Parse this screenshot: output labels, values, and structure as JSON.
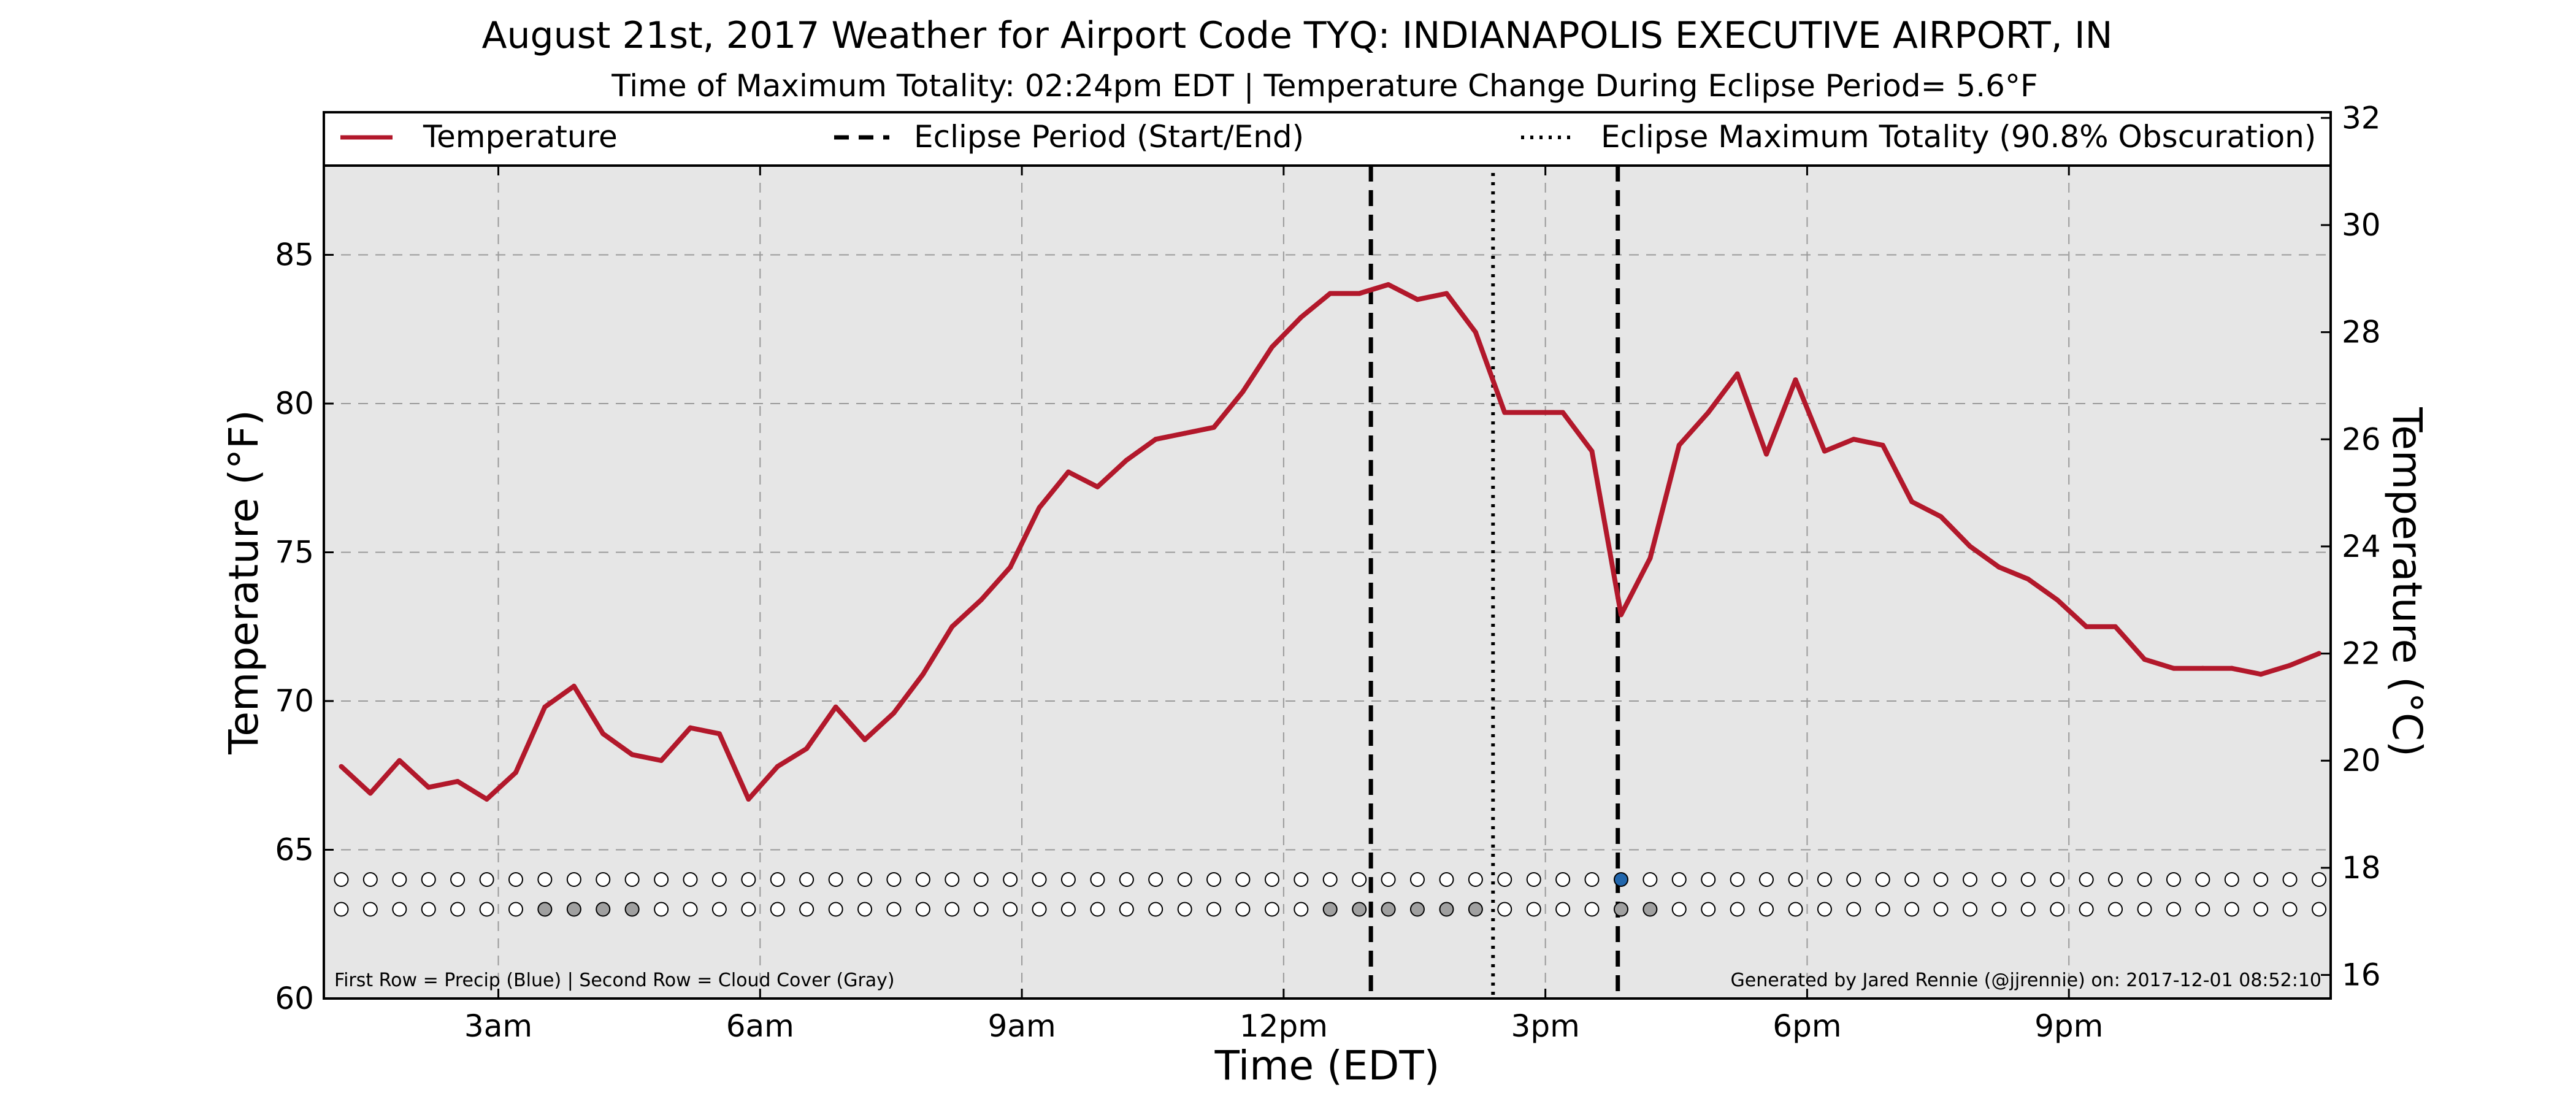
{
  "chart_data": {
    "type": "line",
    "title": "August 21st, 2017 Weather for Airport Code TYQ: INDIANAPOLIS EXECUTIVE AIRPORT, IN",
    "subtitle": "Time of Maximum Totality: 02:24pm EDT | Temperature Change During Eclipse Period= 5.6°F",
    "xlabel": "Time (EDT)",
    "ylabel": "Temperature (°F)",
    "ylabel_right": "Temperature (°C)",
    "xlim": [
      1.0,
      24.0
    ],
    "ylim": [
      60,
      88
    ],
    "ylim_right": [
      15.56,
      31.11
    ],
    "xticks": [
      {
        "x": 3,
        "label": "3am"
      },
      {
        "x": 6,
        "label": "6am"
      },
      {
        "x": 9,
        "label": "9am"
      },
      {
        "x": 12,
        "label": "12pm"
      },
      {
        "x": 15,
        "label": "3pm"
      },
      {
        "x": 18,
        "label": "6pm"
      },
      {
        "x": 21,
        "label": "9pm"
      }
    ],
    "yticks": [
      60,
      65,
      70,
      75,
      80,
      85
    ],
    "yticks_right": [
      16,
      18,
      20,
      22,
      24,
      26,
      28,
      30,
      32
    ],
    "grid": true,
    "background": "#e6e6e6",
    "series": [
      {
        "name": "Temperature",
        "color": "#b2182b",
        "x": [
          1.2,
          1.533,
          1.867,
          2.2,
          2.533,
          2.867,
          3.2,
          3.533,
          3.867,
          4.2,
          4.533,
          4.867,
          5.2,
          5.533,
          5.867,
          6.2,
          6.533,
          6.867,
          7.2,
          7.533,
          7.867,
          8.2,
          8.533,
          8.867,
          9.2,
          9.533,
          9.867,
          10.2,
          10.533,
          10.867,
          11.2,
          11.533,
          11.867,
          12.2,
          12.533,
          12.867,
          13.2,
          13.533,
          13.867,
          14.2,
          14.533,
          14.867,
          15.2,
          15.533,
          15.867,
          16.2,
          16.533,
          16.867,
          17.2,
          17.533,
          17.867,
          18.2,
          18.533,
          18.867,
          19.2,
          19.533,
          19.867,
          20.2,
          20.533,
          20.867,
          21.2,
          21.533,
          21.867,
          22.2,
          22.533,
          22.867,
          23.2,
          23.533,
          23.867
        ],
        "y": [
          67.8,
          66.9,
          68.0,
          67.1,
          67.3,
          66.7,
          67.6,
          69.8,
          70.5,
          68.9,
          68.2,
          68.0,
          69.1,
          68.9,
          66.7,
          67.8,
          68.4,
          69.8,
          68.7,
          69.6,
          70.9,
          72.5,
          73.4,
          74.5,
          76.5,
          77.7,
          77.2,
          78.1,
          78.8,
          79.0,
          79.2,
          80.4,
          81.9,
          82.9,
          83.7,
          83.7,
          84.0,
          83.5,
          83.7,
          82.4,
          79.7,
          79.7,
          79.7,
          78.4,
          72.9,
          74.8,
          78.6,
          79.7,
          81.0,
          78.3,
          80.8,
          78.4,
          78.8,
          78.6,
          76.7,
          76.2,
          75.2,
          74.5,
          74.1,
          73.4,
          72.5,
          72.5,
          71.4,
          71.1,
          71.1,
          71.1,
          70.9,
          71.2,
          71.6
        ]
      }
    ],
    "eclipse": {
      "start": 13.0,
      "end": 15.83,
      "max_totality": 14.4,
      "start_end_label": "Eclipse Period (Start/End)",
      "max_label": "Eclipse Maximum Totality (90.8% Obscuration)"
    },
    "circle_rows": {
      "precip_y": 64.0,
      "cloud_y": 63.0,
      "x": [
        1.2,
        1.533,
        1.867,
        2.2,
        2.533,
        2.867,
        3.2,
        3.533,
        3.867,
        4.2,
        4.533,
        4.867,
        5.2,
        5.533,
        5.867,
        6.2,
        6.533,
        6.867,
        7.2,
        7.533,
        7.867,
        8.2,
        8.533,
        8.867,
        9.2,
        9.533,
        9.867,
        10.2,
        10.533,
        10.867,
        11.2,
        11.533,
        11.867,
        12.2,
        12.533,
        12.867,
        13.2,
        13.533,
        13.867,
        14.2,
        14.533,
        14.867,
        15.2,
        15.533,
        15.867,
        16.2,
        16.533,
        16.867,
        17.2,
        17.533,
        17.867,
        18.2,
        18.533,
        18.867,
        19.2,
        19.533,
        19.867,
        20.2,
        20.533,
        20.867,
        21.2,
        21.533,
        21.867,
        22.2,
        22.533,
        22.867,
        23.2,
        23.533,
        23.867
      ],
      "precip": [
        0,
        0,
        0,
        0,
        0,
        0,
        0,
        0,
        0,
        0,
        0,
        0,
        0,
        0,
        0,
        0,
        0,
        0,
        0,
        0,
        0,
        0,
        0,
        0,
        0,
        0,
        0,
        0,
        0,
        0,
        0,
        0,
        0,
        0,
        0,
        0,
        0,
        0,
        0,
        0,
        0,
        0,
        0,
        0,
        1,
        0,
        0,
        0,
        0,
        0,
        0,
        0,
        0,
        0,
        0,
        0,
        0,
        0,
        0,
        0,
        0,
        0,
        0,
        0,
        0,
        0,
        0,
        0,
        0
      ],
      "cloud": [
        0,
        0,
        0,
        0,
        0,
        0,
        0,
        1,
        1,
        1,
        1,
        0,
        0,
        0,
        0,
        0,
        0,
        0,
        0,
        0,
        0,
        0,
        0,
        0,
        0,
        0,
        0,
        0,
        0,
        0,
        0,
        0,
        0,
        0,
        1,
        1,
        1,
        1,
        1,
        1,
        0,
        0,
        0,
        0,
        1,
        1,
        0,
        0,
        0,
        0,
        0,
        0,
        0,
        0,
        0,
        0,
        0,
        0,
        0,
        0,
        0,
        0,
        0,
        0,
        0,
        0,
        0,
        0,
        0
      ],
      "precip_color": "#2166ac",
      "cloud_color": "#a0a0a0"
    },
    "legend": {
      "placement": "top, outside plot",
      "entries": [
        "Temperature",
        "Eclipse Period (Start/End)",
        "Eclipse Maximum Totality (90.8% Obscuration)"
      ]
    },
    "annotations": {
      "bottom_left": "First Row = Precip (Blue) | Second Row = Cloud Cover (Gray)",
      "bottom_right": "Generated by Jared Rennie (@jjrennie) on: 2017-12-01 08:52:10"
    }
  }
}
